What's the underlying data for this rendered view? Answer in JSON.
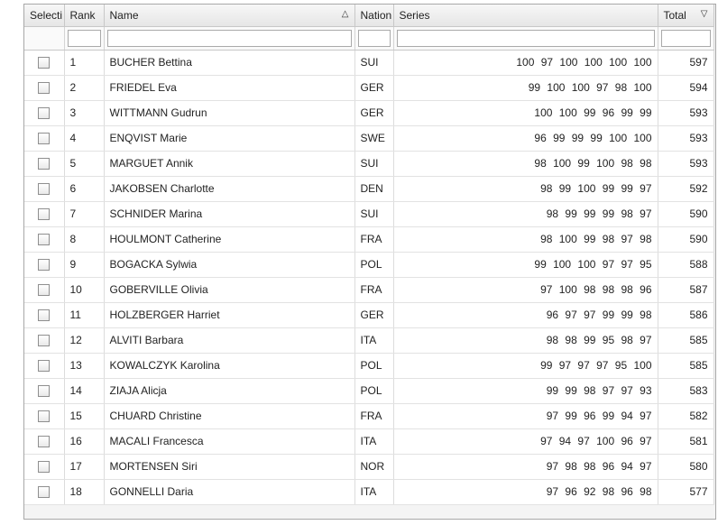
{
  "columns": {
    "select": "Selecti",
    "rank": "Rank",
    "name": "Name",
    "nation": "Nation",
    "series": "Series",
    "total": "Total"
  },
  "sort": {
    "name_icon": "sort-ascending-icon",
    "total_icon": "filter-dropdown-icon"
  },
  "rows": [
    {
      "rank": "1",
      "name": "BUCHER Bettina",
      "nation": "SUI",
      "series": "100 97 100 100 100 100",
      "total": "597"
    },
    {
      "rank": "2",
      "name": "FRIEDEL Eva",
      "nation": "GER",
      "series": "99 100 100 97 98 100",
      "total": "594"
    },
    {
      "rank": "3",
      "name": "WITTMANN Gudrun",
      "nation": "GER",
      "series": "100 100 99 96 99 99",
      "total": "593"
    },
    {
      "rank": "4",
      "name": "ENQVIST Marie",
      "nation": "SWE",
      "series": "96 99 99 99 100 100",
      "total": "593"
    },
    {
      "rank": "5",
      "name": "MARGUET Annik",
      "nation": "SUI",
      "series": "98 100 99 100 98 98",
      "total": "593"
    },
    {
      "rank": "6",
      "name": "JAKOBSEN Charlotte",
      "nation": "DEN",
      "series": "98 99 100 99 99 97",
      "total": "592"
    },
    {
      "rank": "7",
      "name": "SCHNIDER Marina",
      "nation": "SUI",
      "series": "98 99 99 99 98 97",
      "total": "590"
    },
    {
      "rank": "8",
      "name": "HOULMONT Catherine",
      "nation": "FRA",
      "series": "98 100 99 98 97 98",
      "total": "590"
    },
    {
      "rank": "9",
      "name": "BOGACKA Sylwia",
      "nation": "POL",
      "series": "99 100 100 97 97 95",
      "total": "588"
    },
    {
      "rank": "10",
      "name": "GOBERVILLE Olivia",
      "nation": "FRA",
      "series": "97 100 98 98 98 96",
      "total": "587"
    },
    {
      "rank": "11",
      "name": "HOLZBERGER Harriet",
      "nation": "GER",
      "series": "96 97 97 99 99 98",
      "total": "586"
    },
    {
      "rank": "12",
      "name": "ALVITI Barbara",
      "nation": "ITA",
      "series": "98 98 99 95 98 97",
      "total": "585"
    },
    {
      "rank": "13",
      "name": "KOWALCZYK Karolina",
      "nation": "POL",
      "series": "99 97 97 97 95 100",
      "total": "585"
    },
    {
      "rank": "14",
      "name": "ZIAJA Alicja",
      "nation": "POL",
      "series": "99 99 98 97 97 93",
      "total": "583"
    },
    {
      "rank": "15",
      "name": "CHUARD Christine",
      "nation": "FRA",
      "series": "97 99 96 99 94 97",
      "total": "582"
    },
    {
      "rank": "16",
      "name": "MACALI Francesca",
      "nation": "ITA",
      "series": "97 94 97 100 96 97",
      "total": "581"
    },
    {
      "rank": "17",
      "name": "MORTENSEN Siri",
      "nation": "NOR",
      "series": "97 98 98 96 94 97",
      "total": "580"
    },
    {
      "rank": "18",
      "name": "GONNELLI Daria",
      "nation": "ITA",
      "series": "97 96 92 98 96 98",
      "total": "577"
    }
  ]
}
